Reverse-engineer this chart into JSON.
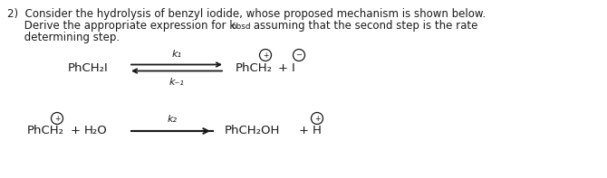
{
  "bg_color": "#ffffff",
  "text_color": "#1a1a1a",
  "fig_width": 6.7,
  "fig_height": 1.97,
  "dpi": 100,
  "line1": "2)  Consider the hydrolysis of benzyl iodide, whose proposed mechanism is shown below.",
  "line2a": "     Derive the appropriate expression for k",
  "line2_sub": "obsd",
  "line2b": " assuming that the second step is the rate",
  "line3": "     determining step.",
  "rxn1_left": "PhCH₂I",
  "rxn1_prod1": "PhCH₂",
  "rxn1_plus": "+",
  "rxn1_anion": "I",
  "k1_label": "k₁",
  "k_1_label": "k₋₁",
  "rxn2_r1": "PhCH₂",
  "rxn2_plus1": "+",
  "rxn2_r2": "H₂O",
  "rxn2_p1": "PhCH₂OH",
  "rxn2_plus2": "+",
  "rxn2_p2": "H",
  "k2_label": "k₂",
  "font_size_body": 8.5,
  "font_size_chem": 9.5,
  "font_size_k": 8.0,
  "font_size_sub": 6.5
}
